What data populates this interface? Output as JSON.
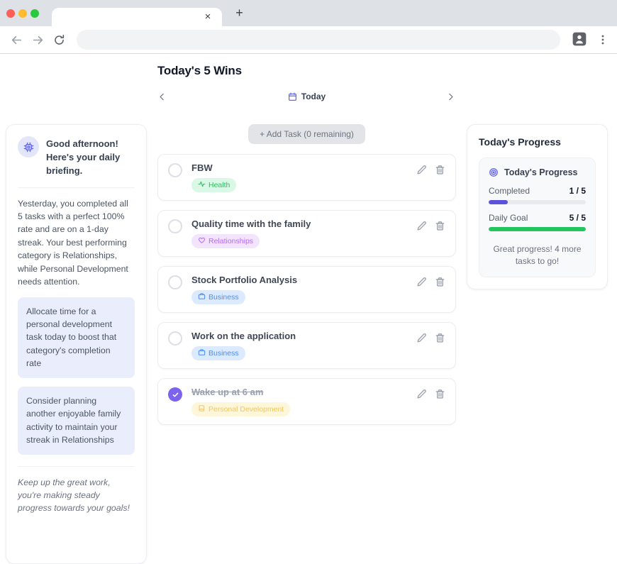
{
  "colors": {
    "accent": "#6366f1",
    "checked_checkbox": "#7c63ee",
    "progress_completed_bar": "#5b52db",
    "progress_goal_bar": "#22c55e"
  },
  "browser": {
    "tab_close_glyph": "×",
    "new_tab_glyph": "+",
    "address_value": "",
    "back_icon": "back-arrow-icon",
    "forward_icon": "forward-arrow-icon",
    "reload_icon": "reload-icon",
    "profile_icon": "profile-icon",
    "menu_icon": "kebab-menu-icon"
  },
  "page": {
    "title": "Today's 5 Wins",
    "date_nav": {
      "current_label": "Today",
      "calendar_icon": "calendar-icon",
      "prev_icon": "chevron-left-icon",
      "next_icon": "chevron-right-icon"
    },
    "add_task_button": "+  Add Task (0 remaining)"
  },
  "briefing": {
    "icon": "ai-chip-icon",
    "heading": "Good afternoon! Here's your daily briefing.",
    "summary": "Yesterday, you completed all 5 tasks with a perfect 100% rate and are on a 1-day streak. Your best performing category is Relationships, while Personal Development needs attention.",
    "suggestions": [
      "Allocate time for a personal development task today to boost that category's completion rate",
      "Consider planning another enjoyable family activity to maintain your streak in Relationships"
    ],
    "footer_note": "Keep up the great work, you're making steady progress towards your goals!"
  },
  "tasks": [
    {
      "title": "FBW",
      "completed": false,
      "category": {
        "label": "Health",
        "icon": "activity-icon",
        "text_color": "#2fbe62",
        "bg_color": "#d9f8e5"
      }
    },
    {
      "title": "Quality time with the family",
      "completed": false,
      "category": {
        "label": "Relationships",
        "icon": "heart-icon",
        "text_color": "#b36bf5",
        "bg_color": "#f2e4fd"
      }
    },
    {
      "title": "Stock Portfolio Analysis",
      "completed": false,
      "category": {
        "label": "Business",
        "icon": "briefcase-icon",
        "text_color": "#4e8df7",
        "bg_color": "#dbeafe"
      }
    },
    {
      "title": "Work on the application",
      "completed": false,
      "category": {
        "label": "Business",
        "icon": "briefcase-icon",
        "text_color": "#4e8df7",
        "bg_color": "#dbeafe"
      }
    },
    {
      "title": "Wake up at 6 am",
      "completed": true,
      "category": {
        "label": "Personal Development",
        "icon": "book-icon",
        "text_color": "#f0b429",
        "bg_color": "#fdf3cd"
      }
    }
  ],
  "progress": {
    "section_heading": "Today's Progress",
    "card_title": "Today's Progress",
    "card_icon": "target-icon",
    "rows": [
      {
        "label": "Completed",
        "value": "1 / 5",
        "percent": 20,
        "bar_color": "#5b52db"
      },
      {
        "label": "Daily Goal",
        "value": "5 / 5",
        "percent": 100,
        "bar_color": "#22c55e"
      }
    ],
    "message": "Great progress! 4 more tasks to go!"
  }
}
